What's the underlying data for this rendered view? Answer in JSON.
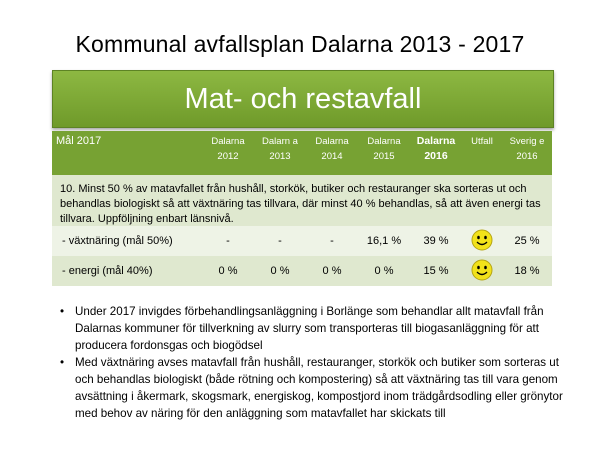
{
  "title": "Kommunal avfallsplan Dalarna 2013 - 2017",
  "banner": "Mat- och restavfall",
  "table": {
    "headers": [
      "Mål 2017",
      "Dalarna 2012",
      "Dalarn a 2013",
      "Dalarna 2014",
      "Dalarna 2015",
      "Dalarna 2016",
      "Utfall",
      "Sverig e 2016"
    ],
    "goal_text": "10. Minst 50 % av matavfallet från hushåll, storkök, butiker och restauranger ska sorteras ut och behandlas biologiskt så att växtnäring tas tillvara, där minst 40 % behandlas, så att även energi tas tillvara. Uppföljning enbart länsnivå.",
    "rows": [
      {
        "label": "- växtnäring (mål 50%)",
        "v2012": "-",
        "v2013": "-",
        "v2014": "-",
        "v2015": "16,1 %",
        "v2016": "39 %",
        "utfall": "smiley-icon",
        "sverige": "25 %"
      },
      {
        "label": "- energi (mål 40%)",
        "v2012": "0 %",
        "v2013": "0 %",
        "v2014": "0 %",
        "v2015": "0 %",
        "v2016": "15 %",
        "utfall": "smiley-icon",
        "sverige": "18 %"
      }
    ]
  },
  "bullets": [
    "Under 2017 invigdes förbehandlingsanläggning i Borlänge som behandlar allt matavfall från Dalarnas kommuner för tillverkning av slurry som transporteras till biogasanläggning för att producera fordonsgas och biogödsel",
    "Med växtnäring avses matavfall från hushåll, restauranger, storkök och butiker som sorteras ut och behandlas biologiskt (både rötning och kompostering) så att växtnäring tas till vara genom avsättning i åkermark, skogsmark, energiskog, kompostjord inom trädgårdsodling eller grönytor med behov av näring för den anläggning som matavfallet har skickats till"
  ],
  "colors": {
    "header_green": "#77a233",
    "banner_green": "#7fac38",
    "row_light": "#eef3e6",
    "row_mid": "#dfe8cf",
    "smiley_yellow": "#f2e21a"
  }
}
